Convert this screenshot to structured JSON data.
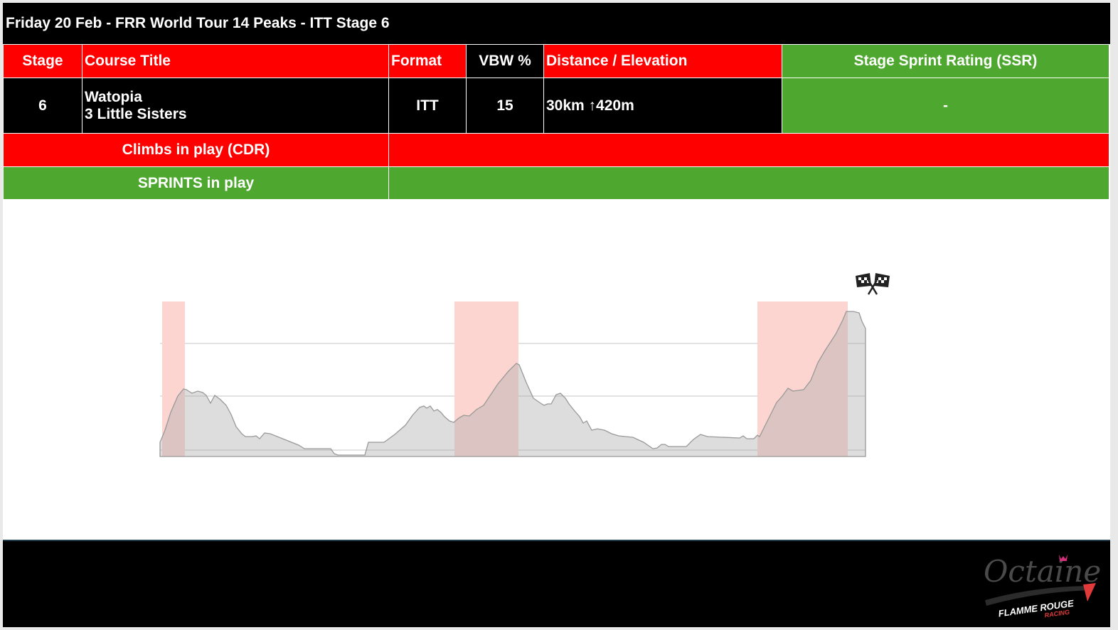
{
  "header": {
    "title": "Friday 20 Feb - FRR World Tour 14 Peaks - ITT Stage 6"
  },
  "table": {
    "headers": {
      "stage": "Stage",
      "course": "Course Title",
      "format": "Format",
      "vbw": "VBW %",
      "distance": "Distance / Elevation",
      "ssr": "Stage Sprint Rating (SSR)"
    },
    "row": {
      "stage": "6",
      "course_line1": "Watopia",
      "course_line2": "3 Little Sisters",
      "format": "ITT",
      "vbw": "15",
      "distance": "30km ↑420m",
      "ssr": "-"
    },
    "climbs_label": "Climbs in play (CDR)",
    "sprints_label": "SPRINTS in play"
  },
  "profile": {
    "icon": "checkered-flag-icon",
    "climb_color": "#fcd5d0",
    "fill_color": "#dcdcdc"
  },
  "logo": {
    "text": "Octaine",
    "subtext": "FLAMME ROUGE",
    "subtext2": "RACING"
  }
}
